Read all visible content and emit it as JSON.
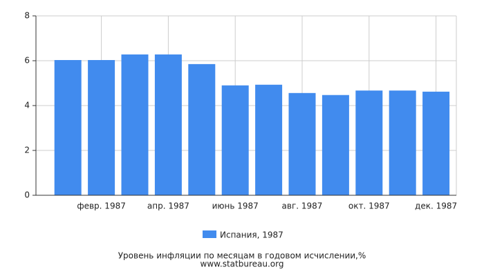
{
  "chart_data": {
    "type": "bar",
    "title": "Уровень инфляции по месяцам в годовом исчислении,%",
    "subtitle": "www.statbureau.org",
    "categories": [
      null,
      "февр. 1987",
      null,
      "апр. 1987",
      null,
      "июнь 1987",
      null,
      "авг. 1987",
      null,
      "окт. 1987",
      null,
      "дек. 1987"
    ],
    "series": [
      {
        "name": "Испания, 1987",
        "color": "#418bee",
        "values": [
          6.03,
          6.03,
          6.28,
          6.28,
          5.85,
          4.9,
          4.93,
          4.56,
          4.47,
          4.67,
          4.67,
          4.62
        ]
      }
    ],
    "ylim": [
      0,
      8
    ],
    "yticks": [
      0,
      2,
      4,
      6,
      8
    ],
    "grid": true
  }
}
